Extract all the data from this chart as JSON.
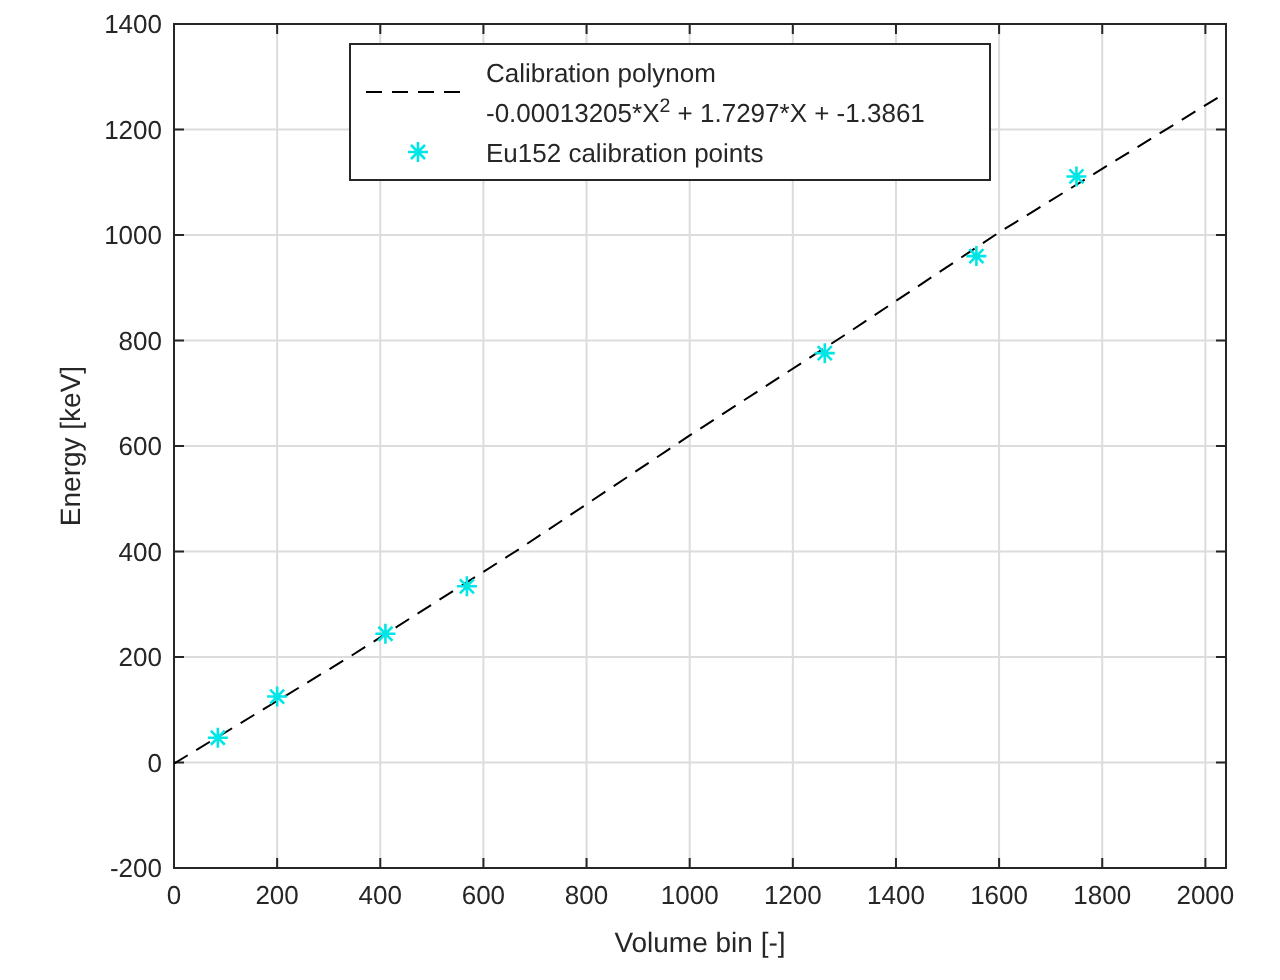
{
  "chart_data": {
    "type": "scatter",
    "xlabel": "Volume bin [-]",
    "ylabel": "Energy [keV]",
    "xlim": [
      0,
      2040
    ],
    "ylim": [
      -200,
      1400
    ],
    "xticks": [
      0,
      200,
      400,
      600,
      800,
      1000,
      1200,
      1400,
      1600,
      1800,
      2000
    ],
    "yticks": [
      -200,
      0,
      200,
      400,
      600,
      800,
      1000,
      1200,
      1400
    ],
    "grid": true,
    "legend": "top",
    "series": [
      {
        "name": "Calibration polynom\n-0.00013205*X$^{2}$ + 1.7297*X + -1.3861",
        "type": "line",
        "line_style": "dashed",
        "marker": "none",
        "color": "#000000",
        "x": [
          0,
          340,
          670,
          1000,
          1300,
          1600,
          2040
        ],
        "values": [
          -2,
          200,
          405,
          620,
          810,
          1005,
          1270
        ]
      },
      {
        "name": "Eu152 calibration points",
        "marker": "cross",
        "color": "#00e5e5",
        "x": [
          85,
          200,
          410,
          568,
          1262,
          1556,
          1750
        ],
        "values": [
          47,
          125,
          244,
          334,
          776,
          960,
          1111
        ]
      }
    ]
  }
}
